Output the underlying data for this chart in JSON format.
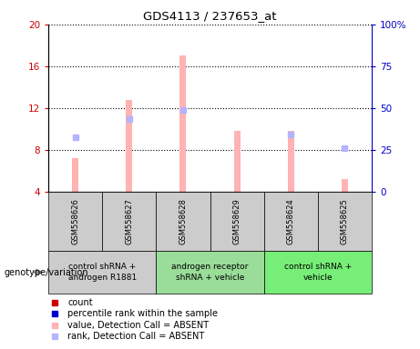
{
  "title": "GDS4113 / 237653_at",
  "samples": [
    "GSM558626",
    "GSM558627",
    "GSM558628",
    "GSM558629",
    "GSM558624",
    "GSM558625"
  ],
  "bar_values_absent": [
    7.2,
    12.8,
    17.0,
    9.8,
    9.8,
    5.2
  ],
  "rank_absent": [
    9.2,
    11.0,
    11.8,
    null,
    9.5,
    8.2
  ],
  "ylim_left": [
    4,
    20
  ],
  "ylim_right": [
    0,
    100
  ],
  "yticks_left": [
    4,
    8,
    12,
    16,
    20
  ],
  "yticks_right": [
    0,
    25,
    50,
    75,
    100
  ],
  "bar_color_absent": "#ffb3b3",
  "rank_color_absent": "#b3b3ff",
  "bar_width": 0.12,
  "groups": [
    {
      "label": "control shRNA +\nandrogen R1881",
      "color": "#cccccc",
      "span": [
        0,
        2
      ]
    },
    {
      "label": "androgen receptor\nshRNA + vehicle",
      "color": "#99dd99",
      "span": [
        2,
        4
      ]
    },
    {
      "label": "control shRNA +\nvehicle",
      "color": "#77ee77",
      "span": [
        4,
        6
      ]
    }
  ],
  "legend_items": [
    {
      "label": "count",
      "color": "#cc0000"
    },
    {
      "label": "percentile rank within the sample",
      "color": "#0000cc"
    },
    {
      "label": "value, Detection Call = ABSENT",
      "color": "#ffb3b3"
    },
    {
      "label": "rank, Detection Call = ABSENT",
      "color": "#b3b3ff"
    }
  ],
  "genotype_label": "genotype/variation",
  "left_axis_color": "#cc0000",
  "right_axis_color": "#0000cc",
  "sample_box_color": "#cccccc",
  "plot_bg": "#ffffff"
}
